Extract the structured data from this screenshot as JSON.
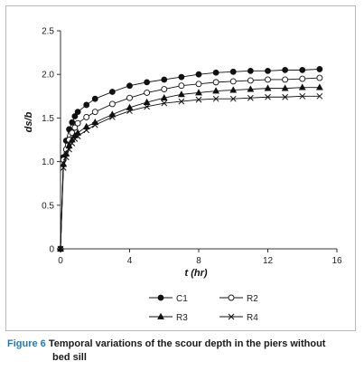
{
  "chart_data": {
    "type": "line",
    "xlabel": "t (hr)",
    "ylabel": "ds/b",
    "xlim": [
      0,
      16
    ],
    "ylim": [
      0,
      2.5
    ],
    "xticks": [
      0,
      4,
      8,
      12,
      16
    ],
    "yticks": [
      0,
      0.5,
      1.0,
      1.5,
      2.0,
      2.5
    ],
    "ytick_labels": [
      "0",
      "0.5",
      "1.0",
      "1.5",
      "2.0",
      "2.5"
    ],
    "grid": false,
    "legend": "bottom",
    "series": [
      {
        "name": "C1",
        "marker": "filled-circle",
        "x": [
          0,
          0.17,
          0.33,
          0.5,
          0.67,
          0.83,
          1.0,
          1.5,
          2,
          3,
          4,
          5,
          6,
          7,
          8,
          9,
          10,
          11,
          12,
          13,
          14,
          15
        ],
        "y": [
          0,
          1.05,
          1.24,
          1.37,
          1.45,
          1.52,
          1.57,
          1.65,
          1.72,
          1.8,
          1.87,
          1.91,
          1.94,
          1.97,
          2.0,
          2.02,
          2.03,
          2.04,
          2.04,
          2.05,
          2.05,
          2.06
        ]
      },
      {
        "name": "R2",
        "marker": "open-circle",
        "x": [
          0,
          0.17,
          0.33,
          0.5,
          0.67,
          0.83,
          1.0,
          1.5,
          2,
          3,
          4,
          5,
          6,
          7,
          8,
          9,
          10,
          11,
          12,
          13,
          14,
          15
        ],
        "y": [
          0,
          1.02,
          1.14,
          1.25,
          1.33,
          1.39,
          1.44,
          1.51,
          1.57,
          1.66,
          1.73,
          1.79,
          1.83,
          1.87,
          1.89,
          1.91,
          1.92,
          1.93,
          1.94,
          1.94,
          1.95,
          1.96
        ]
      },
      {
        "name": "R3",
        "marker": "filled-triangle",
        "x": [
          0,
          0.17,
          0.33,
          0.5,
          0.67,
          0.83,
          1.0,
          1.5,
          2,
          3,
          4,
          5,
          6,
          7,
          8,
          9,
          10,
          11,
          12,
          13,
          14,
          15
        ],
        "y": [
          0,
          0.97,
          1.09,
          1.18,
          1.25,
          1.3,
          1.33,
          1.4,
          1.45,
          1.54,
          1.62,
          1.68,
          1.73,
          1.77,
          1.79,
          1.81,
          1.82,
          1.83,
          1.84,
          1.84,
          1.85,
          1.85
        ]
      },
      {
        "name": "R4",
        "marker": "cross",
        "x": [
          0,
          0.17,
          0.33,
          0.5,
          0.67,
          0.83,
          1.0,
          1.5,
          2,
          3,
          4,
          5,
          6,
          7,
          8,
          9,
          10,
          11,
          12,
          13,
          14,
          15
        ],
        "y": [
          0,
          0.93,
          1.05,
          1.14,
          1.21,
          1.26,
          1.29,
          1.36,
          1.42,
          1.51,
          1.58,
          1.63,
          1.67,
          1.69,
          1.71,
          1.72,
          1.72,
          1.73,
          1.74,
          1.74,
          1.75,
          1.75
        ]
      }
    ]
  },
  "caption": {
    "label": "Figure 6",
    "text_line1": "Temporal variations of the scour depth in the piers without",
    "text_line2": "bed sill"
  },
  "colors": {
    "series": "#111111",
    "axis": "#333333",
    "caption_label": "#1f7ab8"
  }
}
